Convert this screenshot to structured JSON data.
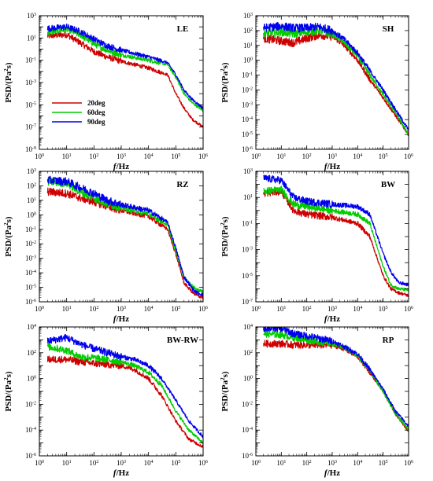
{
  "figure": {
    "colors": {
      "20deg": "#cc0000",
      "60deg": "#00cc00",
      "90deg": "#0000ee"
    },
    "legend_labels": [
      "20deg",
      "60deg",
      "90deg"
    ]
  },
  "chart_data": [
    {
      "type": "line",
      "panel": "LE",
      "title": "LE",
      "xlabel": "f/Hz",
      "ylabel": "PSD/(Pa²s)",
      "xscale": "log",
      "yscale": "log",
      "xlim": [
        1.0,
        1000000.0
      ],
      "ylim": [
        1e-09,
        1000.0
      ],
      "xtick_exponents": [
        0,
        1,
        2,
        3,
        4,
        5,
        6
      ],
      "ytick_exponents": [
        -9,
        -7,
        -5,
        -3,
        -1,
        1,
        3
      ],
      "legend": "left-middle",
      "series": [
        {
          "name": "20deg",
          "color": "#cc0000",
          "x": [
            2,
            10,
            30,
            100,
            300,
            1000,
            10000,
            50000,
            100000,
            200000,
            400000,
            1000000
          ],
          "y": [
            15,
            20,
            4,
            0.6,
            0.2,
            0.08,
            0.02,
            0.005,
            0.0001,
            5e-06,
            5e-07,
            1e-07
          ]
        },
        {
          "name": "60deg",
          "color": "#00cc00",
          "x": [
            2,
            10,
            30,
            100,
            300,
            1000,
            10000,
            50000,
            100000,
            200000,
            400000,
            1000000
          ],
          "y": [
            30,
            60,
            20,
            3,
            0.8,
            0.3,
            0.1,
            0.04,
            0.003,
            0.0001,
            1.5e-05,
            3e-06
          ]
        },
        {
          "name": "90deg",
          "color": "#0000ee",
          "x": [
            2,
            10,
            30,
            100,
            300,
            1000,
            10000,
            50000,
            100000,
            200000,
            400000,
            1000000
          ],
          "y": [
            70,
            100,
            40,
            8,
            2,
            0.8,
            0.2,
            0.06,
            0.005,
            0.0002,
            3e-05,
            5e-06
          ]
        }
      ]
    },
    {
      "type": "line",
      "panel": "SH",
      "title": "SH",
      "xlabel": "f/Hz",
      "ylabel": "PSD/(Pa²s)",
      "xscale": "log",
      "yscale": "log",
      "xlim": [
        1.0,
        1000000.0
      ],
      "ylim": [
        1e-06,
        1000.0
      ],
      "xtick_exponents": [
        0,
        1,
        2,
        3,
        4,
        5,
        6
      ],
      "ytick_exponents": [
        -6,
        -5,
        -4,
        -3,
        -2,
        -1,
        0,
        1,
        2,
        3
      ],
      "series": [
        {
          "name": "20deg",
          "color": "#cc0000",
          "x": [
            2,
            10,
            30,
            100,
            300,
            1000,
            3000,
            10000,
            30000,
            100000,
            300000,
            1000000
          ],
          "y": [
            30,
            20,
            15,
            30,
            50,
            40,
            10,
            1,
            0.05,
            0.003,
            0.0002,
            1e-05
          ]
        },
        {
          "name": "60deg",
          "color": "#00cc00",
          "x": [
            2,
            10,
            30,
            100,
            300,
            1000,
            3000,
            10000,
            30000,
            100000,
            300000,
            1000000
          ],
          "y": [
            60,
            80,
            60,
            80,
            100,
            60,
            15,
            2,
            0.1,
            0.005,
            0.0003,
            1e-05
          ]
        },
        {
          "name": "90deg",
          "color": "#0000ee",
          "x": [
            2,
            10,
            30,
            100,
            300,
            1000,
            3000,
            10000,
            30000,
            100000,
            300000,
            1000000
          ],
          "y": [
            150,
            200,
            150,
            150,
            180,
            100,
            25,
            3,
            0.2,
            0.01,
            0.0005,
            2e-05
          ]
        }
      ]
    },
    {
      "type": "line",
      "panel": "RZ",
      "title": "RZ",
      "xlabel": "f/Hz",
      "ylabel": "PSD/(Pa²s)",
      "xscale": "log",
      "yscale": "log",
      "xlim": [
        1.0,
        1000000.0
      ],
      "ylim": [
        1e-06,
        1000.0
      ],
      "xtick_exponents": [
        0,
        1,
        2,
        3,
        4,
        5,
        6
      ],
      "ytick_exponents": [
        -6,
        -5,
        -4,
        -3,
        -2,
        -1,
        0,
        1,
        2,
        3
      ],
      "series": [
        {
          "name": "20deg",
          "color": "#cc0000",
          "x": [
            2,
            10,
            30,
            100,
            300,
            1000,
            10000,
            50000,
            100000,
            200000,
            500000,
            1000000
          ],
          "y": [
            40,
            30,
            15,
            8,
            4,
            2,
            0.8,
            0.1,
            0.002,
            2e-05,
            3e-06,
            2e-06
          ]
        },
        {
          "name": "60deg",
          "color": "#00cc00",
          "x": [
            2,
            10,
            30,
            100,
            300,
            1000,
            10000,
            50000,
            100000,
            200000,
            500000,
            1000000
          ],
          "y": [
            200,
            150,
            40,
            15,
            6,
            3,
            1.2,
            0.2,
            0.003,
            5e-05,
            8e-06,
            5e-06
          ]
        },
        {
          "name": "90deg",
          "color": "#0000ee",
          "x": [
            2,
            10,
            30,
            100,
            300,
            1000,
            10000,
            50000,
            100000,
            200000,
            500000,
            1000000
          ],
          "y": [
            250,
            200,
            80,
            30,
            10,
            5,
            2,
            0.3,
            0.005,
            5e-05,
            5e-06,
            3e-06
          ]
        }
      ]
    },
    {
      "type": "line",
      "panel": "BW",
      "title": "BW",
      "xlabel": "f/Hz",
      "ylabel": "PSD/(Pa²s)",
      "xscale": "log",
      "yscale": "log",
      "xlim": [
        1.0,
        1000000.0
      ],
      "ylim": [
        1e-07,
        1000.0
      ],
      "xtick_exponents": [
        0,
        1,
        2,
        3,
        4,
        5,
        6
      ],
      "ytick_exponents": [
        -7,
        -5,
        -3,
        -1,
        1,
        3
      ],
      "series": [
        {
          "name": "20deg",
          "color": "#cc0000",
          "x": [
            2,
            10,
            30,
            100,
            1000,
            10000,
            30000,
            100000,
            200000,
            400000,
            1000000
          ],
          "y": [
            20,
            30,
            1,
            0.5,
            0.3,
            0.1,
            0.01,
            1e-05,
            1e-06,
            5e-07,
            3e-07
          ]
        },
        {
          "name": "60deg",
          "color": "#00cc00",
          "x": [
            2,
            10,
            30,
            100,
            1000,
            10000,
            30000,
            100000,
            200000,
            400000,
            1000000
          ],
          "y": [
            30,
            40,
            3,
            2,
            1,
            0.5,
            0.1,
            5e-05,
            2e-06,
            1e-06,
            8e-07
          ]
        },
        {
          "name": "90deg",
          "color": "#0000ee",
          "x": [
            2,
            10,
            30,
            100,
            1000,
            10000,
            30000,
            100000,
            200000,
            400000,
            1000000
          ],
          "y": [
            300,
            200,
            10,
            5,
            3,
            2,
            0.5,
            0.0005,
            2e-05,
            3e-06,
            2e-06
          ]
        }
      ]
    },
    {
      "type": "line",
      "panel": "BW-RW",
      "title": "BW-RW",
      "xlabel": "f/Hz",
      "ylabel": "PSD/(Pa²s)",
      "xscale": "log",
      "yscale": "log",
      "xlim": [
        1.0,
        1000000.0
      ],
      "ylim": [
        1e-06,
        10000.0
      ],
      "xtick_exponents": [
        0,
        1,
        2,
        3,
        4,
        5,
        6
      ],
      "ytick_exponents": [
        -6,
        -4,
        -2,
        0,
        2,
        4
      ],
      "series": [
        {
          "name": "20deg",
          "color": "#cc0000",
          "x": [
            2,
            10,
            30,
            100,
            1000,
            3000,
            10000,
            30000,
            100000,
            300000,
            1000000
          ],
          "y": [
            30,
            30,
            20,
            15,
            10,
            5,
            1,
            0.05,
            0.0005,
            2e-05,
            5e-06
          ]
        },
        {
          "name": "60deg",
          "color": "#00cc00",
          "x": [
            2,
            10,
            30,
            100,
            1000,
            3000,
            10000,
            30000,
            100000,
            300000,
            1000000
          ],
          "y": [
            300,
            150,
            50,
            40,
            20,
            10,
            3,
            0.3,
            0.003,
            0.0001,
            1e-05
          ]
        },
        {
          "name": "90deg",
          "color": "#0000ee",
          "x": [
            2,
            10,
            30,
            100,
            1000,
            3000,
            10000,
            30000,
            100000,
            300000,
            1000000
          ],
          "y": [
            800,
            1500,
            500,
            200,
            50,
            30,
            10,
            1,
            0.02,
            0.0005,
            3e-05
          ]
        }
      ]
    },
    {
      "type": "line",
      "panel": "RP",
      "title": "RP",
      "xlabel": "f/Hz",
      "ylabel": "PSD/(Pa²s)",
      "xscale": "log",
      "yscale": "log",
      "xlim": [
        1.0,
        1000000.0
      ],
      "ylim": [
        1e-06,
        10000.0
      ],
      "xtick_exponents": [
        0,
        1,
        2,
        3,
        4,
        5,
        6
      ],
      "ytick_exponents": [
        -6,
        -4,
        -2,
        0,
        2,
        4
      ],
      "series": [
        {
          "name": "20deg",
          "color": "#cc0000",
          "x": [
            2,
            10,
            30,
            100,
            1000,
            3000,
            10000,
            30000,
            100000,
            300000,
            1000000
          ],
          "y": [
            500,
            500,
            400,
            400,
            400,
            200,
            50,
            3,
            0.1,
            0.002,
            8e-05
          ]
        },
        {
          "name": "60deg",
          "color": "#00cc00",
          "x": [
            2,
            10,
            30,
            100,
            1000,
            3000,
            10000,
            30000,
            100000,
            300000,
            1000000
          ],
          "y": [
            3000,
            2500,
            1500,
            1000,
            500,
            250,
            60,
            4,
            0.1,
            0.002,
            0.0001
          ]
        },
        {
          "name": "90deg",
          "color": "#0000ee",
          "x": [
            2,
            10,
            30,
            100,
            1000,
            3000,
            10000,
            30000,
            100000,
            300000,
            1000000
          ],
          "y": [
            8000,
            8000,
            3000,
            2000,
            800,
            300,
            80,
            5,
            0.15,
            0.003,
            0.0002
          ]
        }
      ]
    }
  ]
}
